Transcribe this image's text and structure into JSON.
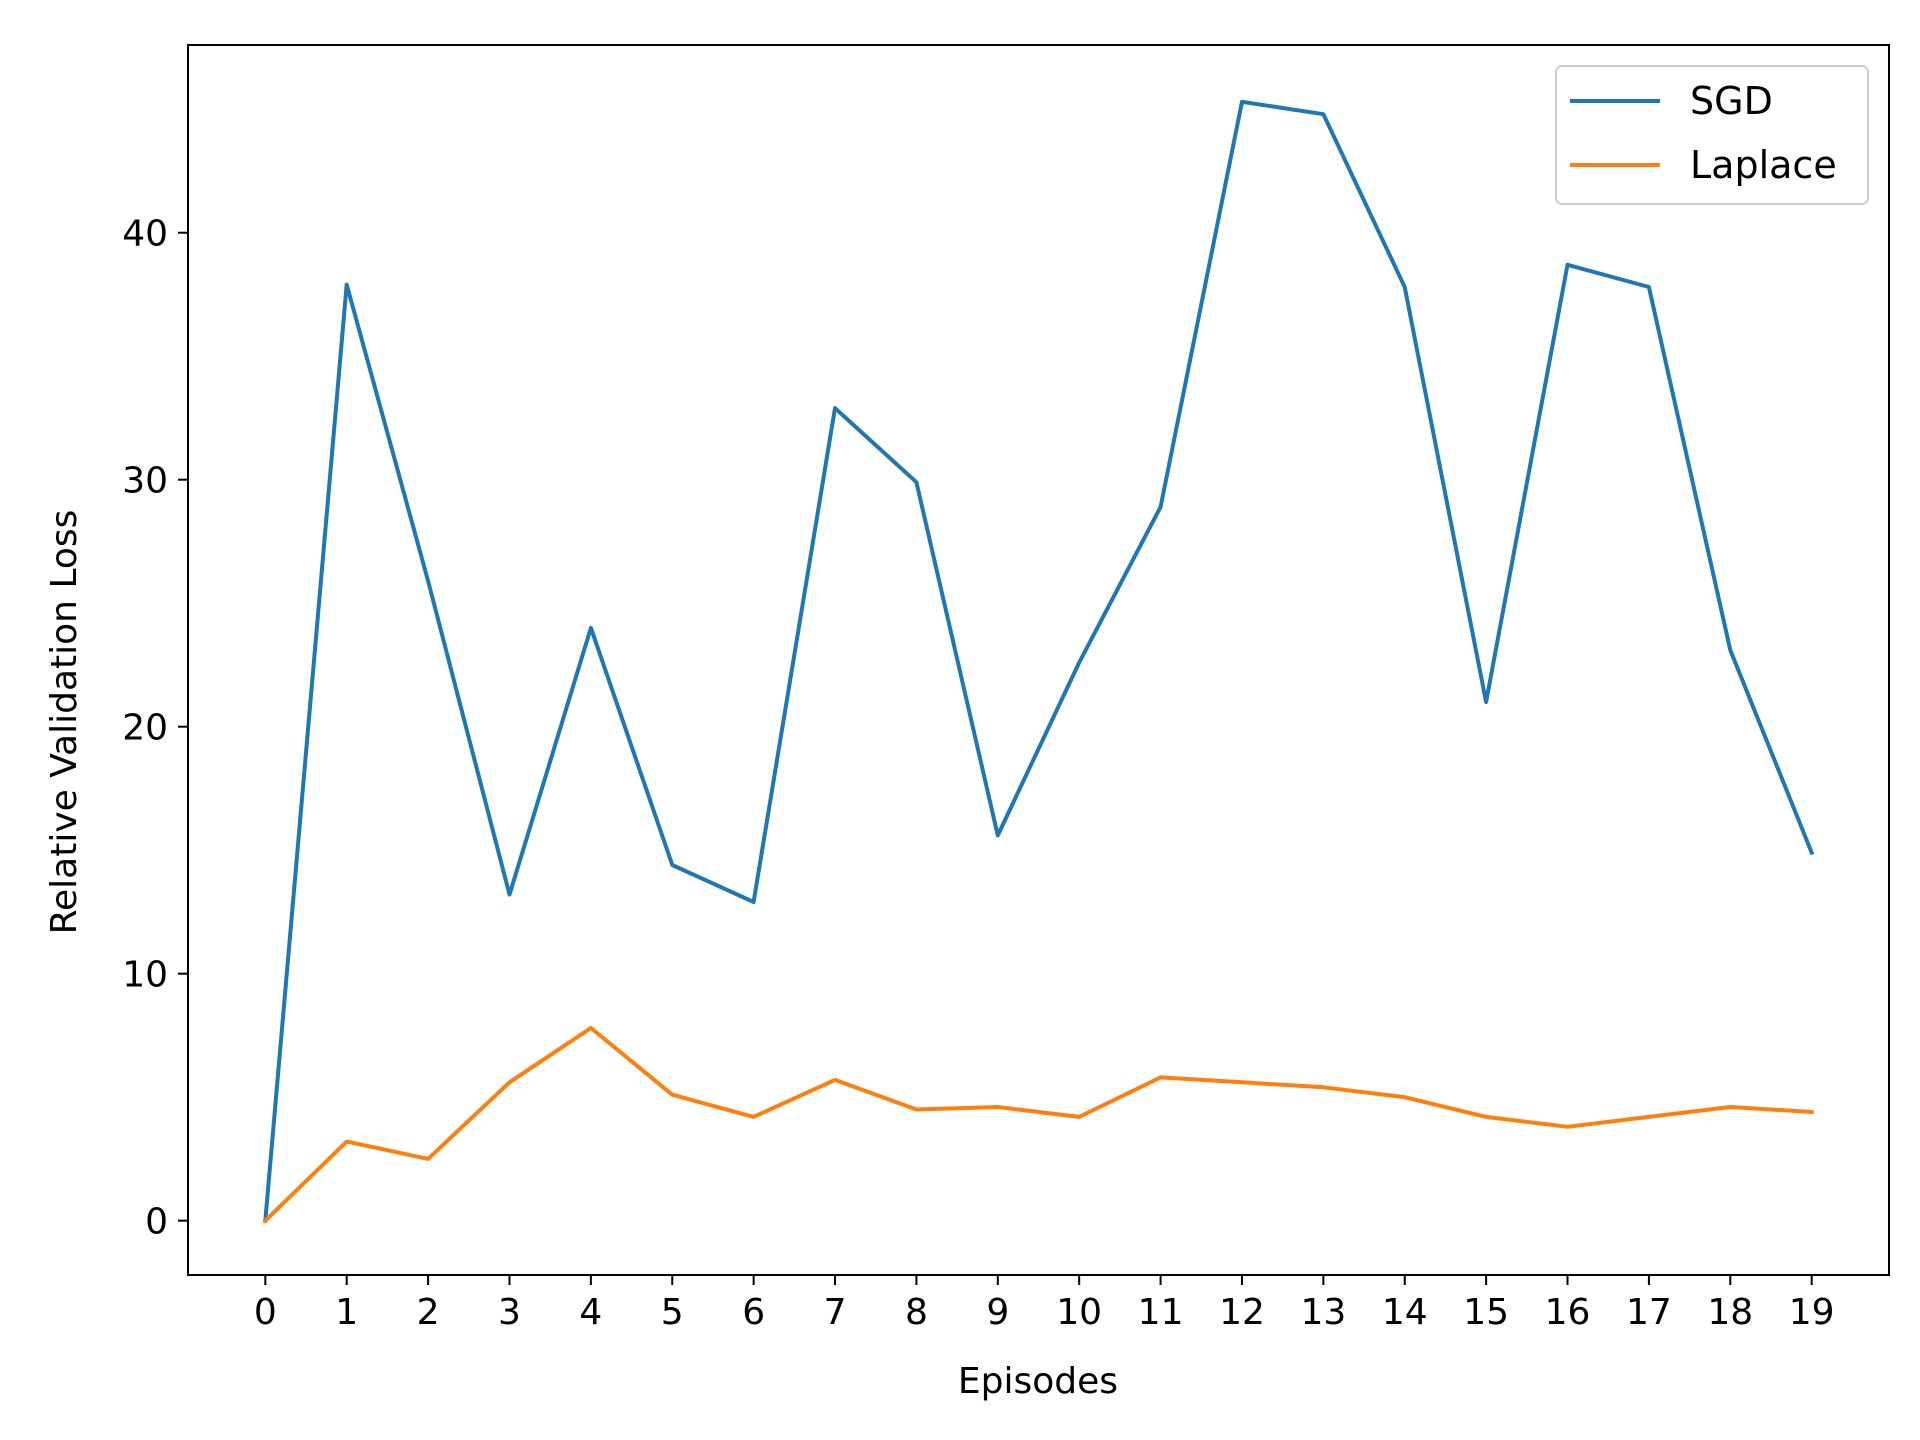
{
  "chart_data": {
    "type": "line",
    "title": "",
    "xlabel": "Episodes",
    "ylabel": "Relative Validation Loss",
    "x": [
      0,
      1,
      2,
      3,
      4,
      5,
      6,
      7,
      8,
      9,
      10,
      11,
      12,
      13,
      14,
      15,
      16,
      17,
      18,
      19
    ],
    "xticks": [
      "0",
      "1",
      "2",
      "3",
      "4",
      "5",
      "6",
      "7",
      "8",
      "9",
      "10",
      "11",
      "12",
      "13",
      "14",
      "15",
      "16",
      "17",
      "18",
      "19"
    ],
    "yticks": [
      0,
      10,
      20,
      30,
      40
    ],
    "xlim": [
      -0.95,
      19.95
    ],
    "ylim": [
      -2.2,
      47.6
    ],
    "grid": false,
    "legend_position": "top-right",
    "series": [
      {
        "name": "SGD",
        "color": "#1f77b4",
        "values": [
          0.0,
          37.9,
          25.9,
          13.2,
          24.0,
          14.4,
          12.9,
          32.9,
          29.9,
          15.6,
          22.6,
          28.9,
          45.3,
          44.8,
          37.8,
          21.0,
          38.7,
          37.8,
          23.1,
          14.9
        ]
      },
      {
        "name": "Laplace",
        "color": "#ff7f0e",
        "values": [
          0.0,
          3.2,
          2.5,
          5.6,
          7.8,
          5.1,
          4.2,
          5.7,
          4.5,
          4.6,
          4.2,
          5.8,
          5.6,
          5.4,
          5.0,
          4.2,
          3.8,
          4.2,
          4.6,
          4.4
        ]
      }
    ]
  }
}
